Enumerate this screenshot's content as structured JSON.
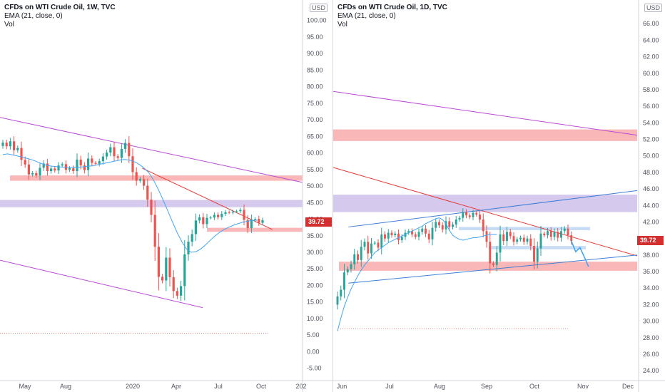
{
  "colors": {
    "up": "#26a69a",
    "down": "#ef5350",
    "ema": "#42a5f5",
    "trend_purple": "#b94ad6",
    "trend_red": "#e53935",
    "trend_blue": "#3f7fd6",
    "zone_red": "#f8a5a5",
    "zone_purple": "#cbbbe9",
    "zone_blue": "#bcd3f2",
    "price_tag": "#d32f2f"
  },
  "left": {
    "legend": {
      "title": "CFDs on WTI Crude Oil, 1W, TVC",
      "ema": "EMA (21, close, 0)",
      "vol": "Vol"
    },
    "currency": "USD",
    "last_price": "39.72",
    "x_ticks": [
      "May",
      "Aug",
      "2020",
      "Apr",
      "Jul",
      "Oct",
      "202"
    ],
    "y_ticks": [
      "100.00",
      "95.00",
      "90.00",
      "85.00",
      "80.00",
      "75.00",
      "70.00",
      "65.00",
      "60.00",
      "55.00",
      "50.00",
      "45.00",
      "40.00",
      "35.00",
      "30.00",
      "25.00",
      "20.00",
      "15.00",
      "10.00",
      "5.00",
      "0.00",
      "-5.00"
    ]
  },
  "right": {
    "legend": {
      "title": "CFDs on WTI Crude Oil, 1D, TVC",
      "ema": "EMA (21, close, 0)",
      "vol": "Vol"
    },
    "currency": "USD",
    "last_price": "39.72",
    "x_ticks": [
      "Jun",
      "Jul",
      "Aug",
      "Sep",
      "Oct",
      "Nov",
      "Dec"
    ],
    "y_ticks": [
      "66.00",
      "64.00",
      "62.00",
      "60.00",
      "58.00",
      "56.00",
      "54.00",
      "52.00",
      "50.00",
      "48.00",
      "46.00",
      "44.00",
      "42.00",
      "40.00",
      "38.00",
      "36.00",
      "34.00",
      "32.00",
      "30.00",
      "28.00",
      "26.00",
      "24.00"
    ]
  },
  "chart_data": [
    {
      "type": "candlestick",
      "title": "CFDs on WTI Crude Oil, 1W, TVC",
      "timeframe": "1W",
      "ylabel": "USD",
      "ylim": [
        -7,
        104
      ],
      "grid": false,
      "last_price": 39.72,
      "series": [
        {
          "name": "CFDs on WTI Crude Oil",
          "close": [
            63.1,
            62.0,
            63.5,
            60.8,
            61.5,
            57.9,
            56.5,
            53.5,
            53.9,
            53.2,
            55.5,
            56.8,
            54.5,
            55.3,
            54.7,
            56.2,
            56.6,
            54.9,
            55.4,
            54.5,
            58.0,
            56.2,
            54.8,
            58.3,
            57.0,
            56.7,
            57.5,
            58.9,
            60.1,
            61.7,
            59.0,
            58.5,
            61.2,
            63.0,
            59.0,
            54.2,
            51.6,
            52.1,
            50.1,
            45.9,
            41.3,
            31.7,
            22.6,
            21.5,
            28.4,
            22.5,
            18.3,
            16.9,
            19.8,
            29.4,
            33.2,
            35.5,
            39.6,
            40.6,
            38.5,
            40.4,
            40.5,
            41.3,
            40.6,
            41.6,
            42.1,
            42.0,
            42.3,
            42.4,
            42.8,
            39.8,
            37.3,
            39.9,
            40.1,
            38.9,
            39.7
          ]
        },
        {
          "name": "EMA (21, close, 0)",
          "values": [
            59.5,
            59.7,
            59.4,
            59.1,
            58.8,
            58.4,
            58.0,
            57.5,
            56.9,
            56.4,
            56.1,
            55.9,
            55.8,
            55.7,
            55.6,
            55.6,
            55.7,
            55.8,
            56.0,
            56.1,
            56.4,
            56.7,
            57.0,
            57.3,
            57.6,
            57.9,
            58.0,
            57.8,
            57.3,
            56.5,
            55.4,
            54.0,
            51.8,
            49.0,
            45.9,
            42.6,
            39.2,
            36.0,
            33.2,
            31.0,
            30.0,
            30.2,
            31.0,
            32.2,
            33.6,
            34.9,
            36.0,
            36.9,
            37.6,
            38.2,
            38.7,
            39.1,
            39.4,
            39.6,
            39.7
          ]
        }
      ],
      "annotations": [
        {
          "kind": "zone",
          "color": "red",
          "from": 51.6,
          "to": 53.2
        },
        {
          "kind": "zone",
          "color": "purple",
          "from": 43.6,
          "to": 45.8
        },
        {
          "kind": "zone",
          "color": "red",
          "from": 36.2,
          "to": 37.4
        },
        {
          "kind": "trendline",
          "color": "purple",
          "from": [
            0,
            70.7
          ],
          "to": [
            1,
            51.1
          ]
        },
        {
          "kind": "trendline",
          "color": "red",
          "from": [
            0.47,
            55.4
          ],
          "to": [
            0.9,
            36.9
          ]
        },
        {
          "kind": "trendline",
          "color": "purple",
          "from": [
            0,
            27.6
          ],
          "to": [
            0.67,
            13.3
          ]
        },
        {
          "kind": "hline_dotted",
          "color": "red",
          "value": 5.6
        }
      ]
    },
    {
      "type": "candlestick",
      "title": "CFDs on WTI Crude Oil, 1D, TVC",
      "timeframe": "1D",
      "ylabel": "USD",
      "ylim": [
        23.5,
        68
      ],
      "grid": false,
      "last_price": 39.72,
      "series": [
        {
          "name": "CFDs on WTI Crude Oil",
          "close": [
            33.0,
            33.8,
            35.9,
            36.3,
            36.9,
            38.1,
            37.4,
            39.0,
            39.6,
            38.2,
            39.4,
            39.5,
            38.9,
            40.5,
            40.0,
            40.7,
            40.4,
            40.6,
            39.8,
            40.2,
            40.7,
            40.9,
            40.5,
            40.2,
            40.8,
            41.2,
            40.6,
            39.9,
            41.3,
            42.0,
            41.6,
            41.1,
            42.1,
            41.4,
            41.7,
            42.3,
            42.5,
            43.2,
            42.8,
            42.6,
            43.1,
            42.9,
            42.3,
            40.9,
            39.6,
            37.0,
            36.8,
            38.3,
            40.5,
            39.7,
            40.8,
            40.3,
            39.6,
            39.9,
            40.1,
            39.6,
            40.0,
            39.1,
            37.2,
            38.8,
            40.6,
            40.4,
            40.9,
            40.2,
            40.8,
            40.1,
            40.9,
            41.2,
            40.4,
            39.7
          ]
        },
        {
          "name": "EMA (21, close, 0)",
          "values": [
            28.8,
            30.4,
            31.8,
            32.9,
            33.9,
            34.7,
            35.5,
            36.2,
            36.8,
            37.3,
            37.8,
            38.3,
            38.6,
            38.9,
            39.2,
            39.5,
            39.7,
            39.9,
            40.1,
            40.3,
            40.5,
            40.7,
            40.9,
            41.1,
            41.3,
            41.5,
            41.8,
            42.0,
            42.2,
            42.4,
            42.5,
            42.3,
            41.8,
            41.0,
            40.4,
            40.1,
            39.9,
            39.8,
            39.9,
            40.0,
            40.1,
            40.1,
            40.2,
            40.3,
            40.4,
            40.5,
            40.5,
            40.5
          ]
        }
      ],
      "annotations": [
        {
          "kind": "zone",
          "color": "red",
          "from": 51.8,
          "to": 53.2
        },
        {
          "kind": "zone",
          "color": "purple",
          "from": 43.2,
          "to": 45.3
        },
        {
          "kind": "zone",
          "color": "red",
          "from": 36.1,
          "to": 37.2
        },
        {
          "kind": "zone",
          "color": "blue",
          "from": 41.0,
          "to": 41.4
        },
        {
          "kind": "zone",
          "color": "blue",
          "from": 38.7,
          "to": 39.1
        },
        {
          "kind": "trendline",
          "color": "purple",
          "from": [
            0,
            57.8
          ],
          "to": [
            1,
            52.5
          ]
        },
        {
          "kind": "trendline",
          "color": "red",
          "from": [
            0,
            48.6
          ],
          "to": [
            1,
            37.9
          ]
        },
        {
          "kind": "trendline",
          "color": "blue",
          "from": [
            0.05,
            41.4
          ],
          "to": [
            1,
            45.8
          ]
        },
        {
          "kind": "trendline",
          "color": "blue",
          "from": [
            0.05,
            34.6
          ],
          "to": [
            1,
            38.0
          ]
        },
        {
          "kind": "projection",
          "color": "blue",
          "values": [
            39.7,
            38.4,
            38.9,
            37.8,
            36.6
          ]
        },
        {
          "kind": "hline_dotted",
          "color": "red",
          "value": 29.1
        }
      ]
    }
  ]
}
